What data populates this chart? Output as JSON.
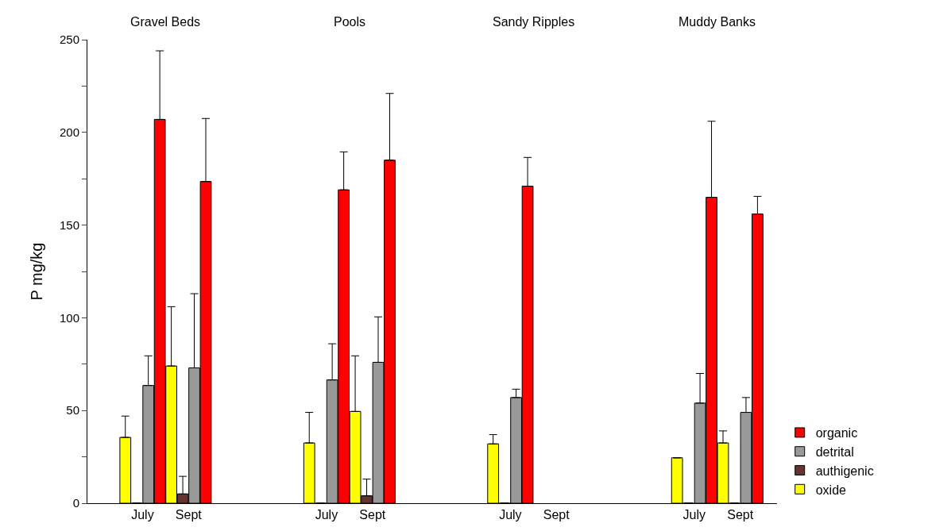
{
  "chart_data": {
    "type": "bar",
    "ylabel": "P mg/kg",
    "annotations": [
      "Gravel Beds",
      "Pools",
      "Sandy Ripples",
      "Muddy Banks"
    ],
    "categories": [
      "July",
      "Sept",
      null,
      null,
      "July",
      "Sept",
      null,
      null,
      "July",
      "Sept",
      null,
      null,
      "July",
      "Sept"
    ],
    "series": [
      {
        "name": "oxide",
        "color": "#ffff00",
        "values": [
          35.5,
          74,
          null,
          null,
          32.5,
          49.5,
          null,
          null,
          32,
          null,
          null,
          null,
          24.5,
          32.5
        ],
        "errors": [
          [
            35.5,
            47
          ],
          [
            74,
            106
          ],
          null,
          null,
          [
            32.5,
            49
          ],
          [
            49.5,
            79.5
          ],
          null,
          null,
          [
            32,
            37
          ],
          null,
          null,
          null,
          null,
          [
            32.5,
            39
          ]
        ]
      },
      {
        "name": "authigenic",
        "color": "#663333",
        "values": [
          0,
          5,
          null,
          null,
          0,
          4,
          null,
          null,
          0,
          null,
          null,
          null,
          0,
          0
        ],
        "errors": [
          null,
          [
            5,
            14.5
          ],
          null,
          null,
          null,
          [
            4,
            13
          ],
          null,
          null,
          null,
          null,
          null,
          null,
          null,
          null
        ]
      },
      {
        "name": "detrital",
        "color": "#999999",
        "values": [
          63.5,
          73,
          null,
          null,
          66.5,
          76,
          null,
          null,
          57,
          null,
          null,
          null,
          54,
          49
        ],
        "errors": [
          [
            63.5,
            79.5
          ],
          [
            73,
            113
          ],
          null,
          null,
          [
            66.5,
            86
          ],
          [
            76,
            100.5
          ],
          null,
          null,
          [
            57,
            61.5
          ],
          null,
          null,
          null,
          [
            54,
            70
          ],
          [
            49,
            57
          ]
        ]
      },
      {
        "name": "organic",
        "color": "#ff0000",
        "values": [
          207,
          173.5,
          null,
          null,
          169,
          185,
          null,
          null,
          171,
          null,
          null,
          null,
          165,
          156
        ],
        "errors": [
          [
            207,
            244
          ],
          [
            173.5,
            207.5
          ],
          null,
          null,
          [
            169,
            189.5
          ],
          [
            185,
            221
          ],
          null,
          null,
          [
            171,
            186.5
          ],
          null,
          null,
          null,
          [
            165,
            206
          ],
          [
            156,
            165.5
          ]
        ]
      }
    ],
    "ylim": [
      0,
      250
    ],
    "yticks": [
      0,
      {
        "value": 25,
        "label": null
      },
      50,
      {
        "value": 75,
        "label": null
      },
      100,
      {
        "value": 125,
        "label": null
      },
      150,
      {
        "value": 175,
        "label": null
      },
      200,
      {
        "value": 225,
        "label": null
      },
      250
    ],
    "legend": "bottom right"
  }
}
